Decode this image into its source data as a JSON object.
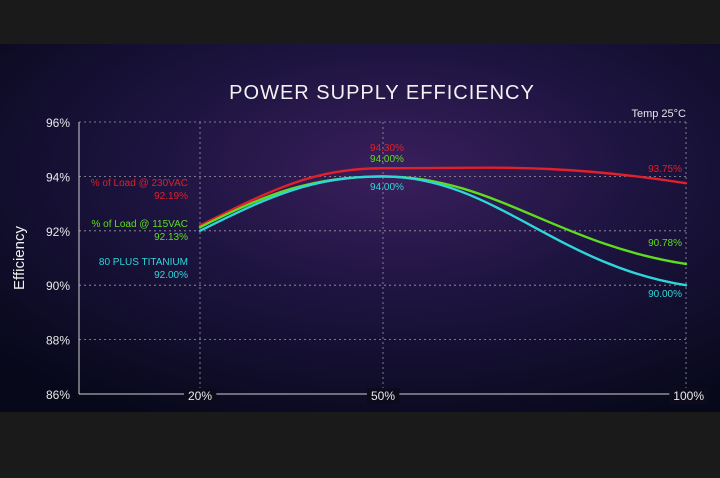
{
  "chart_data": {
    "type": "line",
    "title": "POWER SUPPLY EFFICIENCY",
    "subtitle": "Temp 25°C",
    "ylabel": "Efficiency",
    "xlabel": "",
    "x_ticks": [
      "20%",
      "50%",
      "100%"
    ],
    "y_ticks": [
      "96%",
      "94%",
      "92%",
      "90%",
      "88%",
      "86%"
    ],
    "ylim": [
      86,
      96
    ],
    "grid": true,
    "series": [
      {
        "name": "% of Load @ 230VAC",
        "color": "#e0202a",
        "x": [
          20,
          50,
          100
        ],
        "values": [
          92.19,
          94.3,
          93.75
        ],
        "start_label": "92.19%",
        "peak_label": "94.30%",
        "end_label": "93.75%"
      },
      {
        "name": "% of Load @ 115VAC",
        "color": "#5fdc1e",
        "x": [
          20,
          50,
          100
        ],
        "values": [
          92.13,
          94.0,
          90.78
        ],
        "start_label": "92.13%",
        "peak_label": "94.00%",
        "end_label": "90.78%"
      },
      {
        "name": "80 PLUS TITANIUM",
        "color": "#2fd6d9",
        "x": [
          20,
          50,
          100
        ],
        "values": [
          92.0,
          94.0,
          90.0
        ],
        "start_label": "92.00%",
        "peak_label": "94.00%",
        "end_label": "90.00%"
      }
    ]
  }
}
